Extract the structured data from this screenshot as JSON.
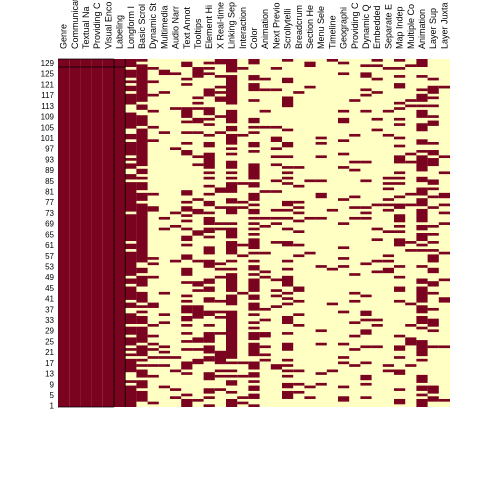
{
  "chart_data": {
    "type": "heatmap",
    "title": "",
    "xlabel": "",
    "ylabel": "",
    "columns": [
      "Genre",
      "Communicat",
      "Textual Na",
      "Providing C",
      "Visual Enco",
      "Labeling",
      "Longform I",
      "Basic Scrol",
      "Dynamic St",
      "Multimedia",
      "Audio Narr",
      "Text Annot",
      "Tooltips",
      "Element Hi",
      "X Real-time",
      "Linking Sep",
      "Interaction",
      "Color",
      "Animation",
      "Next Previo",
      "Scrollytelli",
      "Breadcrum",
      "Section He",
      "Menu Sele",
      "Timeline",
      "Geographi",
      "Providing C",
      "Dynamic Q",
      "Embedded",
      "Separate E",
      "Map Indep",
      "Multiple Co",
      "Animation",
      "Layer Sup",
      "Layer Juxta"
    ],
    "row_count": 130,
    "y_ticks": [
      "129",
      "125",
      "121",
      "117",
      "113",
      "109",
      "105",
      "101",
      "97",
      "93",
      "89",
      "85",
      "81",
      "77",
      "73",
      "69",
      "65",
      "61",
      "57",
      "53",
      "49",
      "45",
      "41",
      "37",
      "33",
      "29",
      "25",
      "21",
      "17",
      "13",
      "9",
      "5",
      "1"
    ],
    "values_encoding": "1 = present (dark red), 0 = absent (light yellow)",
    "colors": {
      "present": "#7a0420",
      "absent": "#ffffc4",
      "grid": "#000000"
    },
    "full_columns": [
      0,
      1,
      2,
      3,
      4,
      5
    ],
    "row_groups": {
      "separator_after_row": 126
    },
    "grid": false,
    "legend": "none"
  }
}
